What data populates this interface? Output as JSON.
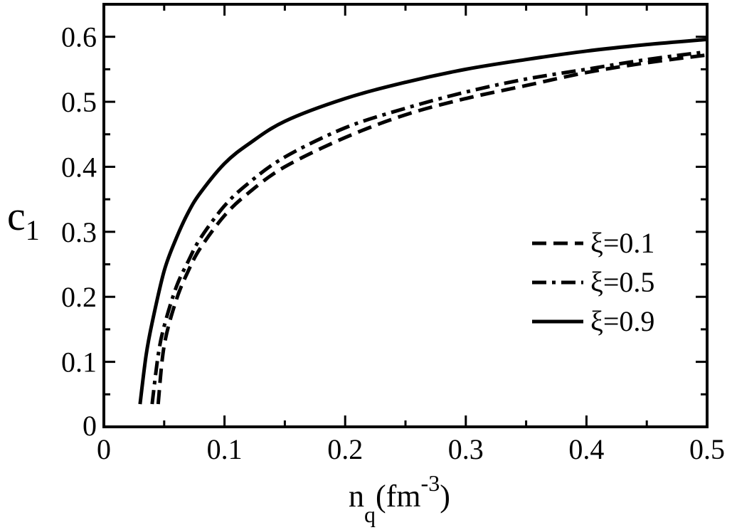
{
  "chart_data": {
    "type": "line",
    "title": "",
    "xlabel": {
      "base": "n",
      "sub": "q",
      "mid": "(fm",
      "sup": "-3",
      "end": ")"
    },
    "ylabel": {
      "base": "c",
      "sub": "1"
    },
    "xlim": [
      0,
      0.5
    ],
    "ylim": [
      0,
      0.65
    ],
    "xticks": [
      0,
      0.1,
      0.2,
      0.3,
      0.4,
      0.5
    ],
    "xtick_labels": [
      "0",
      "0.1",
      "0.2",
      "0.3",
      "0.4",
      "0.5"
    ],
    "yticks": [
      0,
      0.1,
      0.2,
      0.3,
      0.4,
      0.5,
      0.6
    ],
    "ytick_labels": [
      "0",
      "0.1",
      "0.2",
      "0.3",
      "0.4",
      "0.5",
      "0.6"
    ],
    "grid": false,
    "legend_position": "center-right",
    "series": [
      {
        "name": "ξ=0.1",
        "style": "dashed",
        "x": [
          0.045,
          0.05,
          0.06,
          0.07,
          0.08,
          0.1,
          0.12,
          0.15,
          0.2,
          0.25,
          0.3,
          0.35,
          0.4,
          0.45,
          0.5
        ],
        "y": [
          0.035,
          0.125,
          0.195,
          0.24,
          0.275,
          0.325,
          0.36,
          0.4,
          0.445,
          0.48,
          0.505,
          0.525,
          0.545,
          0.56,
          0.572
        ]
      },
      {
        "name": "ξ=0.5",
        "style": "dashdot",
        "x": [
          0.04,
          0.045,
          0.05,
          0.06,
          0.07,
          0.08,
          0.1,
          0.12,
          0.15,
          0.2,
          0.25,
          0.3,
          0.35,
          0.4,
          0.45,
          0.5
        ],
        "y": [
          0.035,
          0.11,
          0.155,
          0.215,
          0.255,
          0.29,
          0.34,
          0.375,
          0.415,
          0.46,
          0.49,
          0.515,
          0.535,
          0.55,
          0.565,
          0.577
        ]
      },
      {
        "name": "ξ=0.9",
        "style": "solid",
        "x": [
          0.03,
          0.035,
          0.04,
          0.05,
          0.06,
          0.07,
          0.08,
          0.1,
          0.12,
          0.15,
          0.2,
          0.25,
          0.3,
          0.35,
          0.4,
          0.45,
          0.5
        ],
        "y": [
          0.035,
          0.11,
          0.16,
          0.24,
          0.29,
          0.33,
          0.36,
          0.405,
          0.435,
          0.47,
          0.505,
          0.53,
          0.55,
          0.565,
          0.578,
          0.588,
          0.596
        ]
      }
    ]
  }
}
